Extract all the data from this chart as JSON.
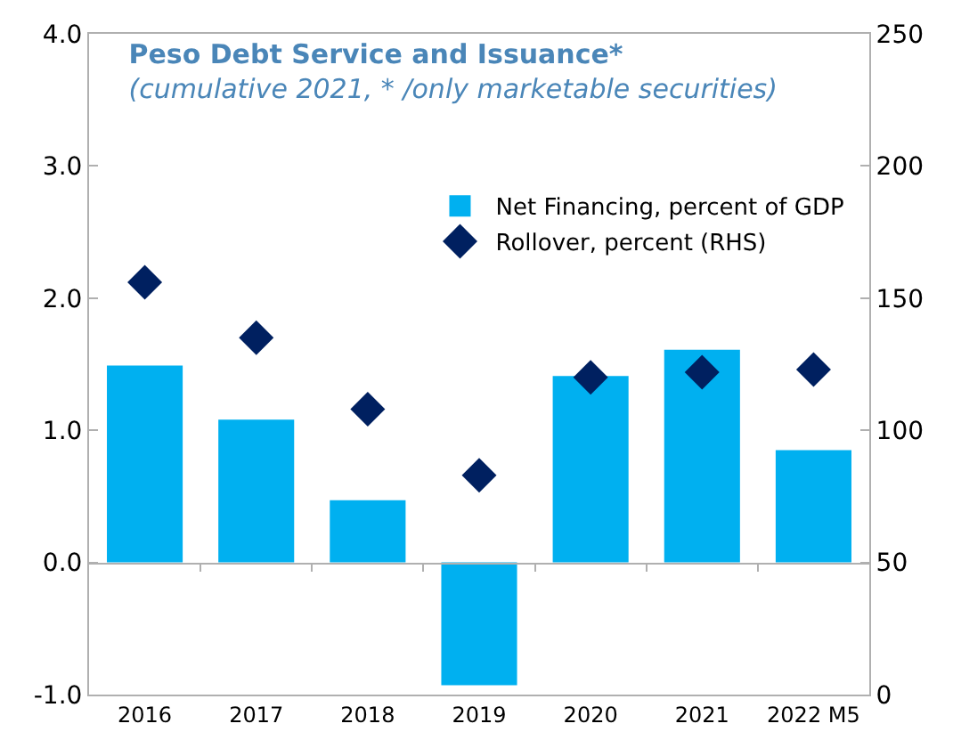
{
  "chart_data": {
    "type": "bar",
    "title": "Peso Debt Service and Issuance*",
    "subtitle": "(cumulative 2021, * /only marketable securities)",
    "categories": [
      "2016",
      "2017",
      "2018",
      "2019",
      "2020",
      "2021",
      "2022 M5"
    ],
    "series": [
      {
        "name": "Net Financing, percent of GDP",
        "color": "#00b0f0",
        "values": [
          1.49,
          1.08,
          0.47,
          -0.93,
          1.41,
          1.61,
          0.85
        ]
      },
      {
        "name": "Rollover, percent (RHS)",
        "type": "scatter",
        "axis": "y2",
        "marker": "diamond",
        "color": "#002060",
        "values": [
          156,
          135,
          108,
          83,
          120,
          122,
          123
        ]
      }
    ],
    "ylim": [
      -1,
      4
    ],
    "yticks": [
      {
        "value": -1,
        "label": "-1.0"
      },
      {
        "value": 0,
        "label": "0.0"
      },
      {
        "value": 1,
        "label": "1.0"
      },
      {
        "value": 2,
        "label": "2.0"
      },
      {
        "value": 3,
        "label": "3.0"
      },
      {
        "value": 4,
        "label": "4.0"
      }
    ],
    "y2lim": [
      0,
      250
    ],
    "y2ticks": [
      0,
      50,
      100,
      150,
      200,
      250
    ],
    "legend": "top right"
  }
}
